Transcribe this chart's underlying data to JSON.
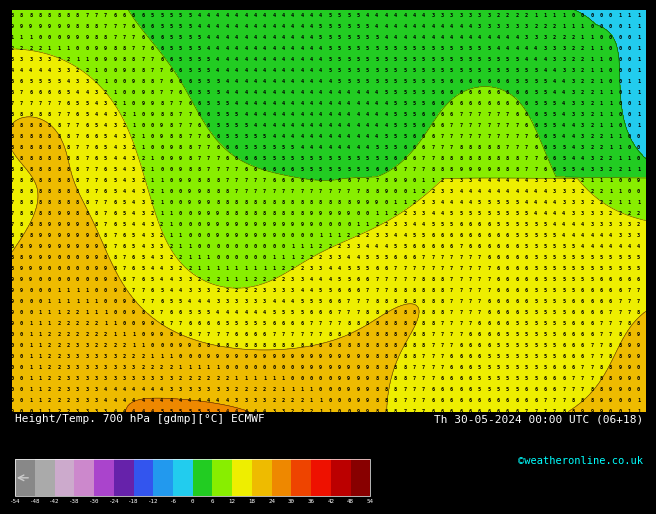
{
  "title_left": "Height/Temp. 700 hPa [gdmp][°C] ECMWF",
  "title_right": "Th 30-05-2024 00:00 UTC (06+18)",
  "credit": "©weatheronline.co.uk",
  "colorbar_levels": [
    -54,
    -48,
    -42,
    -38,
    -30,
    -24,
    -18,
    -12,
    -6,
    0,
    6,
    12,
    18,
    24,
    30,
    36,
    42,
    48,
    54
  ],
  "colorbar_tick_labels": [
    "-54",
    "-48",
    "-42",
    "-38",
    "-30",
    "-24",
    "-18",
    "-12",
    "-6",
    "0",
    "6",
    "12",
    "18",
    "24",
    "30",
    "36",
    "42",
    "48",
    "54"
  ],
  "colorbar_colors": [
    "#888888",
    "#aaaaaa",
    "#ccaacc",
    "#cc88cc",
    "#aa44cc",
    "#6622aa",
    "#3355ee",
    "#2299ee",
    "#22ccee",
    "#22cc22",
    "#88ee00",
    "#eeee00",
    "#eebb00",
    "#ee8800",
    "#ee4400",
    "#ee1100",
    "#bb0000",
    "#880000"
  ],
  "map_digit_color": "#000000",
  "map_bg_color": "#000000",
  "label_color": "#ffffff",
  "credit_color": "#00ffff"
}
